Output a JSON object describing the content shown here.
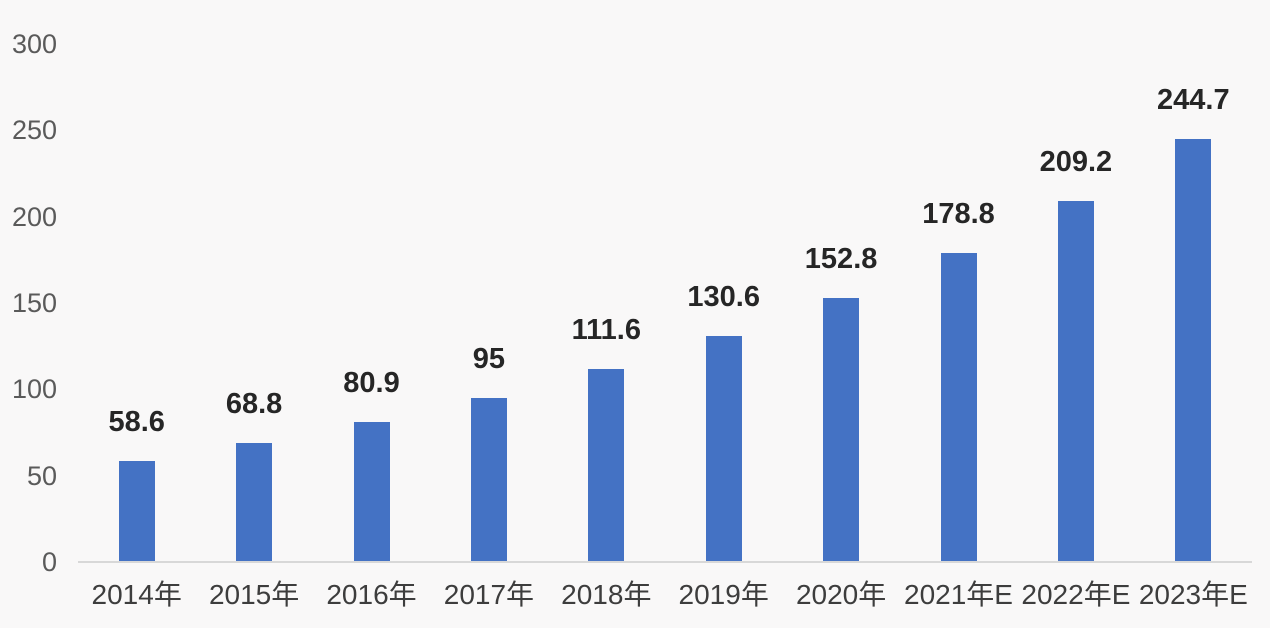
{
  "chart_data": {
    "type": "bar",
    "title": "",
    "xlabel": "",
    "ylabel": "",
    "categories": [
      "2014年",
      "2015年",
      "2016年",
      "2017年",
      "2018年",
      "2019年",
      "2020年",
      "2021年E",
      "2022年E",
      "2023年E"
    ],
    "values": [
      58.6,
      68.8,
      80.9,
      95,
      111.6,
      130.6,
      152.8,
      178.8,
      209.2,
      244.7
    ],
    "value_labels": [
      "58.6",
      "68.8",
      "80.9",
      "95",
      "111.6",
      "130.6",
      "152.8",
      "178.8",
      "209.2",
      "244.7"
    ],
    "ylim": [
      0,
      300
    ],
    "y_ticks": [
      0,
      50,
      100,
      150,
      200,
      250,
      300
    ],
    "grid": false,
    "legend": "none",
    "colors": {
      "bar": "#4472c4",
      "background": "#f9f8f8",
      "axis_line": "#d8d8d8",
      "y_tick_label": "#5a5a5a",
      "x_tick_label": "#3d3d3d",
      "value_label": "#262626"
    }
  }
}
